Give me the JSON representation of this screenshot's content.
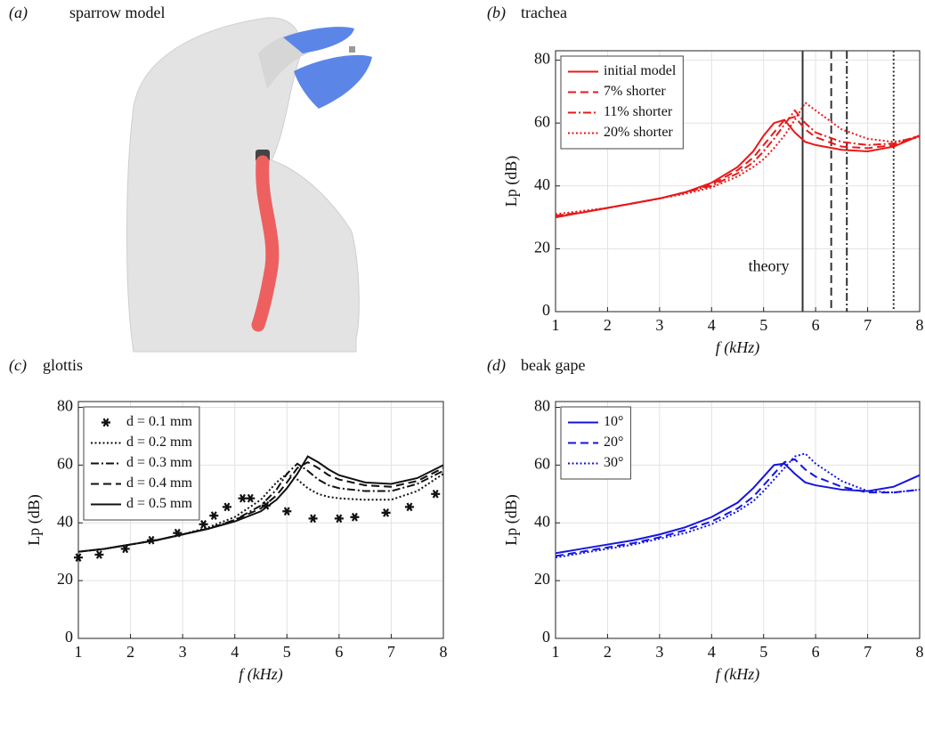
{
  "panel_a": {
    "label": "(a)",
    "title": "sparrow model"
  },
  "chart_data": [
    {
      "type": "line",
      "label": "(b)",
      "title": "trachea",
      "xlabel": "f (kHz)",
      "ylabel": "Lp (dB)",
      "xlim": [
        1,
        8
      ],
      "ylim": [
        0,
        83
      ],
      "xticks": [
        1,
        2,
        3,
        4,
        5,
        6,
        7,
        8
      ],
      "yticks": [
        0,
        20,
        40,
        60,
        80
      ],
      "grid": true,
      "legend": "upper left",
      "x": [
        1,
        1.5,
        2,
        2.5,
        3,
        3.5,
        4,
        4.5,
        4.8,
        5,
        5.2,
        5.4,
        5.6,
        5.8,
        6,
        6.5,
        7,
        7.5,
        8
      ],
      "series": [
        {
          "name": "initial model",
          "color": "#e8191a",
          "dash": "solid",
          "values": [
            30,
            31.5,
            33,
            34.5,
            36,
            38,
            41,
            46,
            51,
            56,
            60,
            61,
            57,
            54,
            53,
            51.5,
            51,
            52.5,
            56
          ]
        },
        {
          "name": "7% shorter",
          "color": "#e8191a",
          "dash": "dashed",
          "values": [
            30.5,
            31.5,
            33,
            34.5,
            36,
            38,
            40.5,
            45,
            49,
            53,
            57,
            61,
            62,
            58,
            55.5,
            52.5,
            52,
            53,
            56
          ]
        },
        {
          "name": "11% shorter",
          "color": "#e8191a",
          "dash": "dashdot",
          "values": [
            30.5,
            31.5,
            33,
            34.5,
            36,
            38,
            40,
            44,
            47.5,
            51,
            55,
            59.5,
            64,
            60,
            57,
            54,
            53,
            53.5,
            56
          ]
        },
        {
          "name": "20% shorter",
          "color": "#e8191a",
          "dash": "dotted",
          "values": [
            31,
            32,
            33,
            34.5,
            36,
            37.5,
            39.5,
            43,
            46,
            48.5,
            52,
            56,
            61,
            66.5,
            64,
            58,
            55,
            54,
            55.5
          ]
        }
      ],
      "vlines": [
        {
          "x": 5.75,
          "dash": "solid"
        },
        {
          "x": 6.3,
          "dash": "dashed"
        },
        {
          "x": 6.6,
          "dash": "dashdot"
        },
        {
          "x": 7.5,
          "dash": "dotted"
        }
      ],
      "vline_color": "#333333",
      "annotation": {
        "text": "theory",
        "x": 5.1,
        "y": 14
      }
    },
    {
      "type": "line",
      "label": "(c)",
      "title": "glottis",
      "xlabel": "f (kHz)",
      "ylabel": "Lp (dB)",
      "xlim": [
        1,
        8
      ],
      "ylim": [
        0,
        82
      ],
      "xticks": [
        1,
        2,
        3,
        4,
        5,
        6,
        7,
        8
      ],
      "yticks": [
        0,
        20,
        40,
        60,
        80
      ],
      "grid": true,
      "legend": "upper left",
      "x": [
        1,
        1.5,
        2,
        2.5,
        3,
        3.5,
        4,
        4.5,
        4.8,
        5,
        5.2,
        5.4,
        5.6,
        5.8,
        6,
        6.5,
        7,
        7.5,
        8
      ],
      "series": [
        {
          "name": "d = 0.1 mm",
          "color": "#111111",
          "marker": "*",
          "x": [
            1,
            1.4,
            1.9,
            2.4,
            2.9,
            3.4,
            3.6,
            3.85,
            4.15,
            4.3,
            4.6,
            5,
            5.5,
            6,
            6.3,
            6.9,
            7.35,
            7.85
          ],
          "values": [
            28,
            29,
            31,
            34,
            36.5,
            39.5,
            42.5,
            45.5,
            48.5,
            48.5,
            46,
            44,
            41.5,
            41.5,
            42,
            43.5,
            45.5,
            50
          ]
        },
        {
          "name": "d = 0.2 mm",
          "color": "#111111",
          "dash": "dotted",
          "values": [
            30,
            31,
            32.5,
            34,
            36,
            38.5,
            42,
            48,
            54,
            57,
            55,
            52,
            50,
            49,
            48.5,
            48,
            48,
            51,
            57
          ]
        },
        {
          "name": "d = 0.3 mm",
          "color": "#111111",
          "dash": "dashdot",
          "values": [
            30,
            31,
            32.5,
            34,
            36,
            38,
            41,
            46,
            51.5,
            57,
            60.5,
            58,
            55,
            53,
            52,
            51,
            51,
            53.5,
            58
          ]
        },
        {
          "name": "d = 0.4 mm",
          "color": "#111111",
          "dash": "dashed",
          "values": [
            30,
            31,
            32.5,
            34,
            36,
            38,
            41,
            45,
            49.5,
            54,
            59,
            61,
            59,
            56.5,
            55,
            53,
            52.5,
            54.5,
            59
          ]
        },
        {
          "name": "d = 0.5 mm",
          "color": "#111111",
          "dash": "solid",
          "values": [
            30,
            31,
            32.5,
            34,
            36,
            38,
            40.5,
            44,
            48,
            52,
            57,
            63,
            61,
            58.5,
            56.5,
            54,
            53.5,
            55.5,
            60
          ]
        }
      ]
    },
    {
      "type": "line",
      "label": "(d)",
      "title": "beak gape",
      "xlabel": "f (kHz)",
      "ylabel": "Lp (dB)",
      "xlim": [
        1,
        8
      ],
      "ylim": [
        0,
        82
      ],
      "xticks": [
        1,
        2,
        3,
        4,
        5,
        6,
        7,
        8
      ],
      "yticks": [
        0,
        20,
        40,
        60,
        80
      ],
      "grid": true,
      "legend": "upper left",
      "x": [
        1,
        1.5,
        2,
        2.5,
        3,
        3.5,
        4,
        4.5,
        4.8,
        5,
        5.2,
        5.4,
        5.6,
        5.8,
        6,
        6.5,
        7,
        7.5,
        8
      ],
      "series": [
        {
          "name": "10°",
          "color": "#1515e0",
          "dash": "solid",
          "values": [
            29.5,
            31,
            32.5,
            34,
            36,
            38.5,
            42,
            47,
            52,
            56,
            60,
            60.5,
            57,
            54,
            53,
            51.5,
            51,
            52.5,
            56.5
          ]
        },
        {
          "name": "20°",
          "color": "#1515e0",
          "dash": "dashed",
          "values": [
            28.5,
            30,
            31.5,
            33,
            35,
            37.5,
            40.5,
            45,
            49,
            53,
            57,
            61,
            62,
            58.5,
            56,
            52.5,
            50.5,
            50.5,
            51.5
          ]
        },
        {
          "name": "30°",
          "color": "#1515e0",
          "dash": "dotted",
          "values": [
            28,
            29.5,
            31,
            32.5,
            34.5,
            36.5,
            39.5,
            44,
            47.5,
            51,
            55,
            59,
            63,
            64,
            60.5,
            54.5,
            51,
            50.5,
            51.5
          ]
        }
      ]
    }
  ]
}
